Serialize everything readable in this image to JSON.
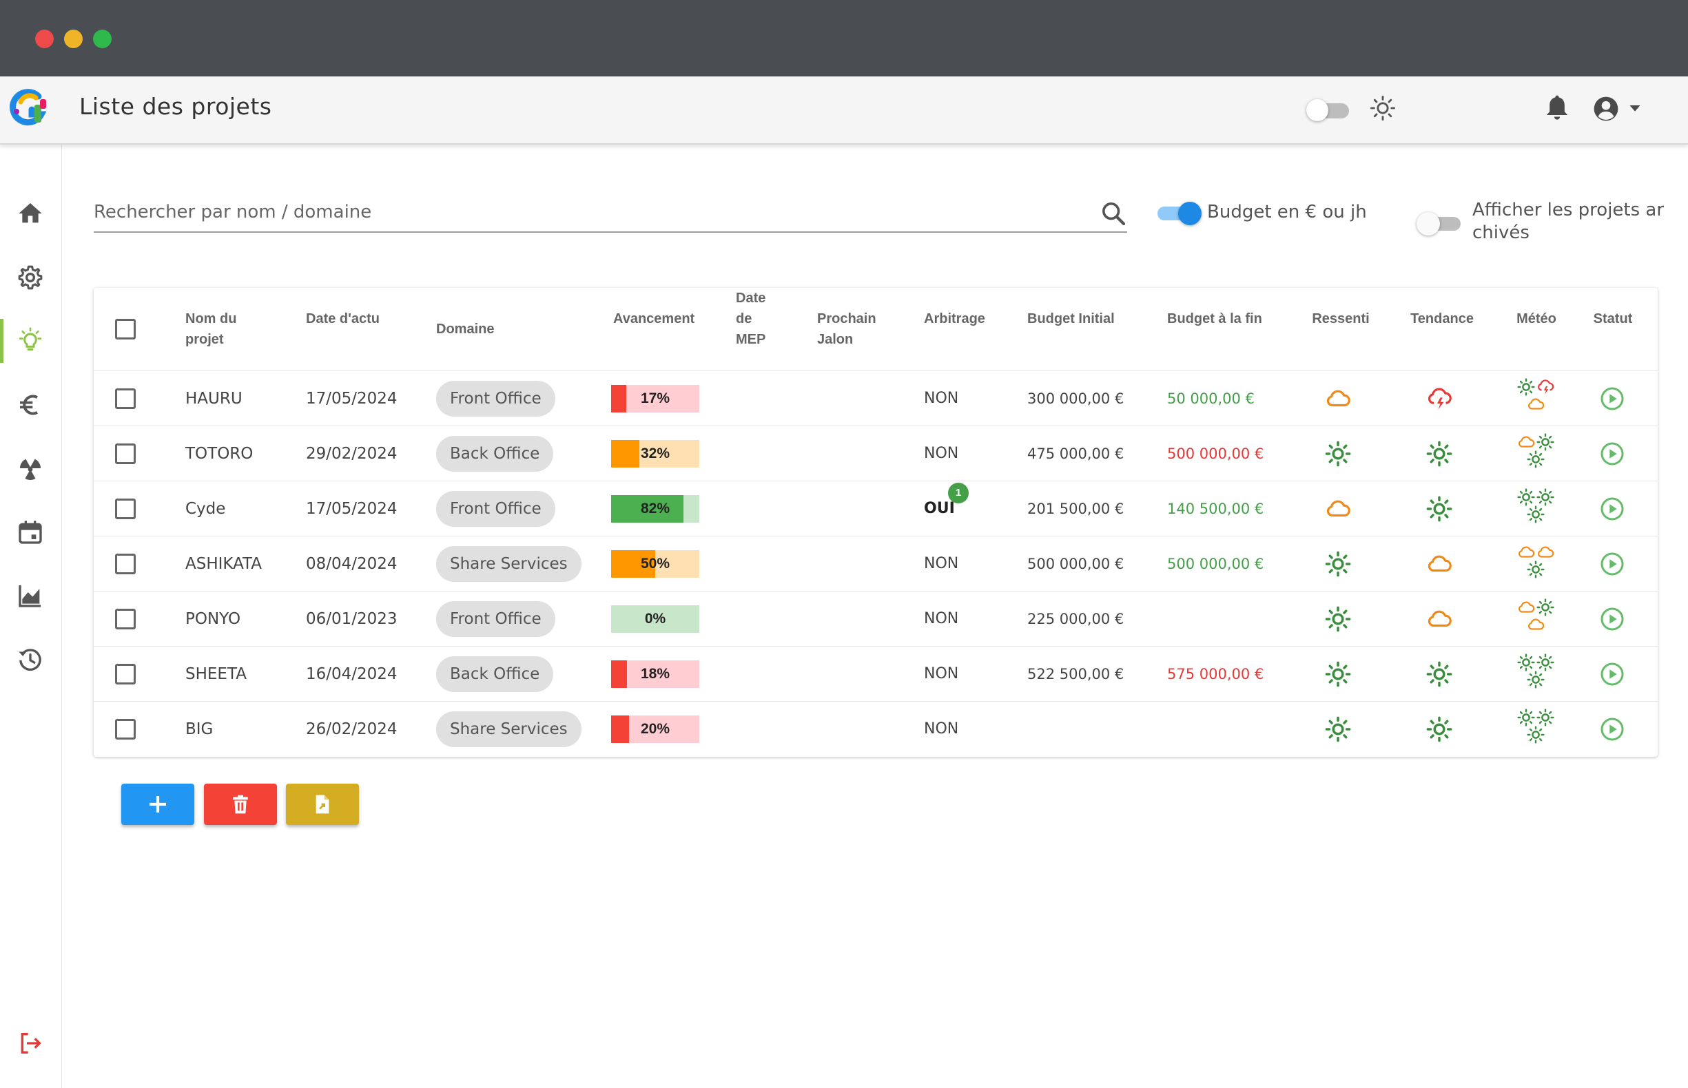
{
  "header": {
    "title": "Liste des projets",
    "logo_icon": "app-logo-icon",
    "theme_toggle": {
      "checked": false,
      "icon": "sun-icon"
    },
    "notifications_icon": "bell-icon",
    "account_icon": "account-circle-icon",
    "account_dropdown_icon": "caret-down-icon"
  },
  "sidebar": {
    "items": [
      {
        "id": "home",
        "icon": "home-icon",
        "active": false
      },
      {
        "id": "settings",
        "icon": "gear-icon",
        "active": false
      },
      {
        "id": "projects",
        "icon": "lightbulb-icon",
        "active": true
      },
      {
        "id": "budget",
        "icon": "euro-icon",
        "active": false
      },
      {
        "id": "risks",
        "icon": "radioactive-icon",
        "active": false
      },
      {
        "id": "calendar",
        "icon": "calendar-icon",
        "active": false
      },
      {
        "id": "reports",
        "icon": "chart-icon",
        "active": false
      },
      {
        "id": "history",
        "icon": "history-icon",
        "active": false
      }
    ],
    "logout_icon": "logout-icon"
  },
  "filters": {
    "search_placeholder": "Rechercher par nom / domaine",
    "budget_toggle": {
      "label": "Budget en € ou jh",
      "checked": true
    },
    "archived_toggle": {
      "label_line1": "Afficher les projets ar",
      "label_line2": "chivés",
      "checked": false
    }
  },
  "table": {
    "headers": {
      "name": [
        "Nom du",
        "projet"
      ],
      "date": "Date d'actu",
      "domain": "Domaine",
      "progress": "Avancement",
      "mep": [
        "Date",
        "de",
        "MEP"
      ],
      "milestone": [
        "Prochain",
        "Jalon"
      ],
      "arbitration": "Arbitrage",
      "budget_initial": "Budget Initial",
      "budget_end": "Budget à la fin",
      "felt": "Ressenti",
      "trend": "Tendance",
      "weather": "Météo",
      "status": "Statut"
    },
    "rows": [
      {
        "name": "HAURU",
        "date": "17/05/2024",
        "domain": "Front Office",
        "progress": 17,
        "progress_label": "17%",
        "progress_color": "#f44336",
        "progress_bg": "#ffcdd2",
        "arbitration": "NON",
        "arbitration_badge": "",
        "budget_initial": "300 000,00 €",
        "budget_end": "50 000,00 €",
        "budget_end_color": "#43a047",
        "felt": "cloud",
        "trend": "storm",
        "weather": [
          "sun",
          "storm",
          "cloud"
        ],
        "status": "play-circle-icon"
      },
      {
        "name": "TOTORO",
        "date": "29/02/2024",
        "domain": "Back Office",
        "progress": 32,
        "progress_label": "32%",
        "progress_color": "#ff9800",
        "progress_bg": "#ffe0b2",
        "arbitration": "NON",
        "arbitration_badge": "",
        "budget_initial": "475 000,00 €",
        "budget_end": "500 000,00 €",
        "budget_end_color": "#e53935",
        "felt": "sun",
        "trend": "sun",
        "weather": [
          "cloud",
          "sun",
          "sun"
        ],
        "status": "play-circle-icon"
      },
      {
        "name": "Cyde",
        "date": "17/05/2024",
        "domain": "Front Office",
        "progress": 82,
        "progress_label": "82%",
        "progress_color": "#4caf50",
        "progress_bg": "#c8e6c9",
        "arbitration": "OUI",
        "arbitration_badge": "1",
        "budget_initial": "201 500,00 €",
        "budget_end": "140 500,00 €",
        "budget_end_color": "#43a047",
        "felt": "cloud",
        "trend": "sun",
        "weather": [
          "sun",
          "sun",
          "sun"
        ],
        "status": "play-circle-icon"
      },
      {
        "name": "ASHIKATA",
        "date": "08/04/2024",
        "domain": "Share Services",
        "progress": 50,
        "progress_label": "50%",
        "progress_color": "#ff9800",
        "progress_bg": "#ffe0b2",
        "arbitration": "NON",
        "arbitration_badge": "",
        "budget_initial": "500 000,00 €",
        "budget_end": "500 000,00 €",
        "budget_end_color": "#43a047",
        "felt": "sun",
        "trend": "cloud",
        "weather": [
          "cloud",
          "cloud",
          "sun"
        ],
        "status": "play-circle-icon"
      },
      {
        "name": "PONYO",
        "date": "06/01/2023",
        "domain": "Front Office",
        "progress": 0,
        "progress_label": "0%",
        "progress_color": "#4caf50",
        "progress_bg": "#c8e6c9",
        "arbitration": "NON",
        "arbitration_badge": "",
        "budget_initial": "225 000,00 €",
        "budget_end": "",
        "budget_end_color": "#43a047",
        "felt": "sun",
        "trend": "cloud",
        "weather": [
          "cloud",
          "sun",
          "cloud"
        ],
        "status": "play-circle-icon"
      },
      {
        "name": "SHEETA",
        "date": "16/04/2024",
        "domain": "Back Office",
        "progress": 18,
        "progress_label": "18%",
        "progress_color": "#f44336",
        "progress_bg": "#ffcdd2",
        "arbitration": "NON",
        "arbitration_badge": "",
        "budget_initial": "522 500,00 €",
        "budget_end": "575 000,00 €",
        "budget_end_color": "#e53935",
        "felt": "sun",
        "trend": "sun",
        "weather": [
          "sun",
          "sun",
          "sun"
        ],
        "status": "play-circle-icon"
      },
      {
        "name": "BIG",
        "date": "26/02/2024",
        "domain": "Share Services",
        "progress": 20,
        "progress_label": "20%",
        "progress_color": "#f44336",
        "progress_bg": "#ffcdd2",
        "arbitration": "NON",
        "arbitration_badge": "",
        "budget_initial": "",
        "budget_end": "",
        "budget_end_color": "#43a047",
        "felt": "sun",
        "trend": "sun",
        "weather": [
          "sun",
          "sun",
          "sun"
        ],
        "status": "play-circle-icon"
      }
    ]
  },
  "actions": [
    {
      "id": "add",
      "icon": "plus-icon",
      "color": "#2196f3"
    },
    {
      "id": "delete",
      "icon": "trash-icon",
      "color": "#f44336"
    },
    {
      "id": "export",
      "icon": "file-export-icon",
      "color": "#d4ac21"
    }
  ],
  "colors": {
    "sun": "#388e3c",
    "cloud": "#ef8a16",
    "storm": "#e53935",
    "status": "#66bb6a",
    "toggle_on": "#1e88e5",
    "accent": "#8bc34a"
  }
}
